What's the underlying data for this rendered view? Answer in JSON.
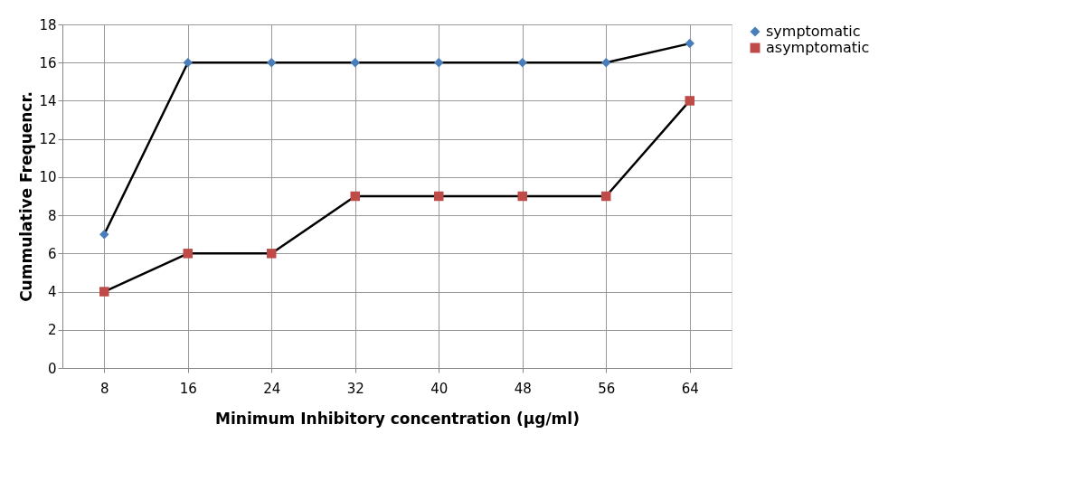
{
  "chart_data": {
    "type": "line",
    "xlabel": "Minimum Inhibitory concentration (µg/ml)",
    "ylabel": "Cummulative Frequencr.",
    "categories": [
      "8",
      "16",
      "24",
      "32",
      "40",
      "48",
      "56",
      "64"
    ],
    "series": [
      {
        "name": "symptomatic",
        "color": "#4a7ebb",
        "marker": "diamond",
        "values": [
          7,
          16,
          16,
          16,
          16,
          16,
          16,
          17
        ]
      },
      {
        "name": "asymptomatic",
        "color": "#be4b48",
        "marker": "square",
        "values": [
          4,
          6,
          6,
          9,
          9,
          9,
          9,
          14
        ]
      }
    ],
    "ylim": [
      0,
      18
    ],
    "yticks": [
      0,
      2,
      4,
      6,
      8,
      10,
      12,
      14,
      16,
      18
    ],
    "grid": true,
    "legend": "right",
    "line_style": "solid"
  }
}
